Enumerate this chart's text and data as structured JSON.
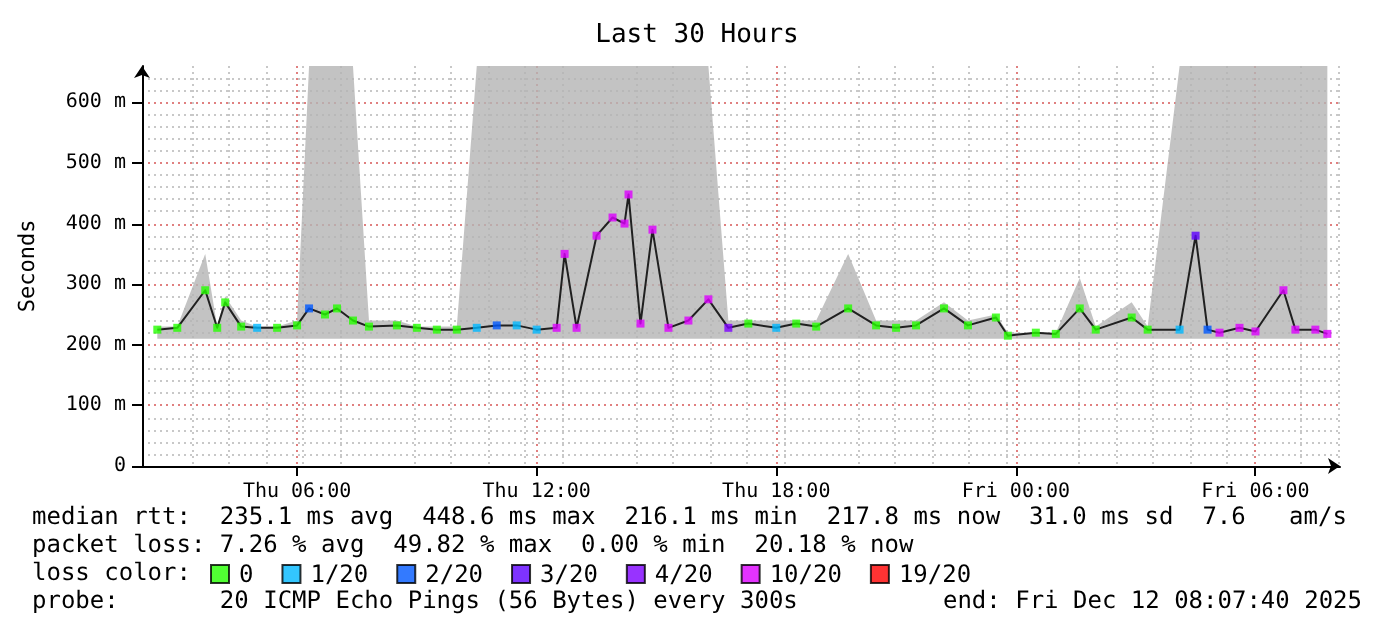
{
  "chart_data": {
    "type": "line",
    "title": "Last 30 Hours",
    "ylabel": "Seconds",
    "x": [
      "2025-12-11T02:30",
      "2025-12-11T03:00",
      "2025-12-11T03:42",
      "2025-12-11T04:00",
      "2025-12-11T04:12",
      "2025-12-11T04:36",
      "2025-12-11T05:00",
      "2025-12-11T05:30",
      "2025-12-11T06:00",
      "2025-12-11T06:18",
      "2025-12-11T06:42",
      "2025-12-11T07:00",
      "2025-12-11T07:24",
      "2025-12-11T07:48",
      "2025-12-11T08:30",
      "2025-12-11T09:00",
      "2025-12-11T09:30",
      "2025-12-11T10:00",
      "2025-12-11T10:30",
      "2025-12-11T11:00",
      "2025-12-11T11:30",
      "2025-12-11T12:00",
      "2025-12-11T12:30",
      "2025-12-11T12:42",
      "2025-12-11T13:00",
      "2025-12-11T13:30",
      "2025-12-11T13:54",
      "2025-12-11T14:12",
      "2025-12-11T14:18",
      "2025-12-11T14:36",
      "2025-12-11T14:54",
      "2025-12-11T15:18",
      "2025-12-11T15:48",
      "2025-12-11T16:18",
      "2025-12-11T16:48",
      "2025-12-11T17:18",
      "2025-12-11T18:00",
      "2025-12-11T18:30",
      "2025-12-11T19:00",
      "2025-12-11T19:48",
      "2025-12-11T20:30",
      "2025-12-11T21:00",
      "2025-12-11T21:30",
      "2025-12-11T22:12",
      "2025-12-11T22:48",
      "2025-12-11T23:30",
      "2025-12-11T23:48",
      "2025-12-12T00:30",
      "2025-12-12T01:00",
      "2025-12-12T01:36",
      "2025-12-12T02:00",
      "2025-12-12T02:54",
      "2025-12-12T03:18",
      "2025-12-12T04:06",
      "2025-12-12T04:30",
      "2025-12-12T04:48",
      "2025-12-12T05:06",
      "2025-12-12T05:36",
      "2025-12-12T06:00",
      "2025-12-12T06:42",
      "2025-12-12T07:00",
      "2025-12-12T07:30",
      "2025-12-12T07:48"
    ],
    "xlim": [
      "2025-12-11T02:07",
      "2025-12-12T08:07"
    ],
    "xticks": [
      {
        "value": "2025-12-11T06:00",
        "label": "Thu 06:00"
      },
      {
        "value": "2025-12-11T12:00",
        "label": "Thu 12:00"
      },
      {
        "value": "2025-12-11T18:00",
        "label": "Thu 18:00"
      },
      {
        "value": "2025-12-12T00:00",
        "label": "Fri 00:00"
      },
      {
        "value": "2025-12-12T06:00",
        "label": "Fri 06:00"
      }
    ],
    "ylim": [
      0,
      660
    ],
    "yticks": [
      0,
      {
        "value": 100,
        "label": "100 m"
      },
      {
        "value": 200,
        "label": "200 m"
      },
      {
        "value": 300,
        "label": "300 m"
      },
      {
        "value": 400,
        "label": "400 m"
      },
      {
        "value": 500,
        "label": "500 m"
      },
      {
        "value": 600,
        "label": "600 m"
      }
    ],
    "grid": true,
    "legend": "bottom",
    "legend_title": "loss color:",
    "marker": "square",
    "series": [
      {
        "color": "#202020",
        "marker": "none",
        "values": [
          225,
          228,
          290,
          228,
          270,
          230,
          228,
          228,
          232,
          260,
          250,
          260,
          240,
          230,
          232,
          228,
          225,
          225,
          228,
          232,
          232,
          225,
          228,
          350,
          228,
          380,
          410,
          400,
          448,
          235,
          390,
          228,
          240,
          275,
          228,
          235,
          228,
          235,
          230,
          260,
          232,
          228,
          232,
          260,
          232,
          245,
          215,
          220,
          218,
          260,
          225,
          245,
          225,
          225,
          380,
          225,
          220,
          228,
          222,
          290,
          225,
          225,
          218
        ],
        "lower": [
          210,
          210,
          210,
          210,
          210,
          210,
          210,
          210,
          210,
          210,
          210,
          210,
          210,
          210,
          210,
          210,
          210,
          210,
          210,
          210,
          210,
          210,
          210,
          210,
          210,
          210,
          210,
          210,
          210,
          210,
          210,
          210,
          210,
          210,
          210,
          210,
          210,
          210,
          210,
          210,
          210,
          210,
          210,
          210,
          210,
          210,
          210,
          210,
          210,
          210,
          210,
          210,
          210,
          210,
          210,
          210,
          210,
          210,
          210,
          210,
          210,
          210,
          210
        ],
        "upper": [
          230,
          230,
          350,
          230,
          280,
          240,
          230,
          230,
          240,
          660,
          660,
          660,
          660,
          240,
          240,
          230,
          230,
          230,
          660,
          660,
          660,
          660,
          660,
          660,
          660,
          660,
          660,
          660,
          660,
          660,
          660,
          660,
          660,
          660,
          240,
          240,
          240,
          240,
          240,
          350,
          240,
          240,
          240,
          270,
          240,
          250,
          220,
          220,
          220,
          310,
          230,
          270,
          230,
          660,
          660,
          660,
          660,
          660,
          660,
          660,
          660,
          660,
          660
        ]
      },
      {
        "type": "scatter",
        "name": "0",
        "color": "#26ff00",
        "values": [
          225,
          228,
          290,
          228,
          270,
          230,
          null,
          228,
          232,
          null,
          250,
          260,
          240,
          230,
          232,
          228,
          225,
          225,
          null,
          null,
          null,
          null,
          null,
          null,
          null,
          null,
          null,
          null,
          null,
          null,
          null,
          null,
          null,
          null,
          null,
          235,
          null,
          235,
          230,
          260,
          232,
          228,
          232,
          260,
          232,
          245,
          215,
          220,
          218,
          260,
          225,
          245,
          225,
          null,
          null,
          null,
          null,
          null,
          null,
          null,
          null,
          null,
          null
        ]
      },
      {
        "type": "scatter",
        "name": "1/20",
        "color": "#00b8ff",
        "values": [
          null,
          null,
          null,
          null,
          null,
          null,
          228,
          null,
          null,
          null,
          null,
          null,
          null,
          null,
          null,
          null,
          null,
          null,
          228,
          null,
          232,
          225,
          null,
          null,
          null,
          null,
          null,
          null,
          null,
          null,
          null,
          null,
          null,
          null,
          null,
          null,
          228,
          null,
          null,
          null,
          null,
          null,
          null,
          null,
          null,
          null,
          null,
          null,
          null,
          null,
          null,
          null,
          null,
          225,
          null,
          null,
          null,
          null,
          null,
          null,
          null,
          null,
          null
        ]
      },
      {
        "type": "scatter",
        "name": "2/20",
        "color": "#0059ff",
        "values": [
          null,
          null,
          null,
          null,
          null,
          null,
          null,
          null,
          null,
          260,
          null,
          null,
          null,
          null,
          null,
          null,
          null,
          null,
          null,
          232,
          null,
          null,
          null,
          null,
          null,
          null,
          null,
          null,
          null,
          null,
          null,
          null,
          null,
          null,
          null,
          null,
          null,
          null,
          null,
          null,
          null,
          null,
          null,
          null,
          null,
          null,
          null,
          null,
          null,
          null,
          null,
          null,
          null,
          null,
          null,
          225,
          null,
          null,
          null,
          null,
          null,
          null,
          null
        ]
      },
      {
        "type": "scatter",
        "name": "3/20",
        "color": "#5e00ff",
        "values": [
          null,
          null,
          null,
          null,
          null,
          null,
          null,
          null,
          null,
          null,
          null,
          null,
          null,
          null,
          null,
          null,
          null,
          null,
          null,
          null,
          null,
          null,
          null,
          null,
          null,
          null,
          null,
          null,
          null,
          null,
          null,
          null,
          null,
          null,
          null,
          null,
          null,
          null,
          null,
          null,
          null,
          null,
          null,
          null,
          null,
          null,
          null,
          null,
          null,
          null,
          null,
          null,
          null,
          null,
          380,
          null,
          null,
          null,
          null,
          null,
          null,
          null,
          null
        ]
      },
      {
        "type": "scatter",
        "name": "4/20",
        "color": "#7e00ff",
        "values": [
          null,
          null,
          null,
          null,
          null,
          null,
          null,
          null,
          null,
          null,
          null,
          null,
          null,
          null,
          null,
          null,
          null,
          null,
          null,
          null,
          null,
          null,
          null,
          null,
          null,
          null,
          null,
          null,
          null,
          null,
          null,
          null,
          null,
          null,
          228,
          null,
          null,
          null,
          null,
          null,
          null,
          null,
          null,
          null,
          null,
          null,
          null,
          null,
          null,
          null,
          null,
          null,
          null,
          null,
          null,
          null,
          null,
          null,
          null,
          null,
          null,
          null,
          null
        ]
      },
      {
        "type": "scatter",
        "name": "10/20",
        "color": "#dd00ff",
        "values": [
          null,
          null,
          null,
          null,
          null,
          null,
          null,
          null,
          null,
          null,
          null,
          null,
          null,
          null,
          null,
          null,
          null,
          null,
          null,
          null,
          null,
          null,
          228,
          350,
          228,
          380,
          410,
          400,
          448,
          235,
          390,
          228,
          240,
          275,
          null,
          null,
          null,
          null,
          null,
          null,
          null,
          null,
          null,
          null,
          null,
          null,
          null,
          null,
          null,
          null,
          null,
          null,
          null,
          null,
          null,
          null,
          220,
          228,
          222,
          290,
          225,
          225,
          218
        ]
      },
      {
        "type": "scatter",
        "name": "19/20",
        "color": "#ff0000",
        "values": [
          null,
          null,
          null,
          null,
          null,
          null,
          null,
          null,
          null,
          null,
          null,
          null,
          null,
          null,
          null,
          null,
          null,
          null,
          null,
          null,
          null,
          null,
          null,
          null,
          null,
          null,
          null,
          null,
          null,
          null,
          null,
          null,
          null,
          null,
          null,
          null,
          null,
          null,
          null,
          null,
          null,
          null,
          null,
          null,
          null,
          null,
          null,
          null,
          null,
          null,
          null,
          null,
          null,
          null,
          null,
          null,
          null,
          null,
          null,
          null,
          null,
          null,
          null
        ]
      }
    ],
    "annotations": [
      "median rtt:  235.1 ms avg  448.6 ms max  216.1 ms min  217.8 ms now  31.0 ms sd  7.6   am/s",
      "packet loss: 7.26 % avg  49.82 % max  0.00 % min  20.18 % now",
      "probe:       20 ICMP Echo Pings (56 Bytes) every 300s",
      "end: Fri Dec 12 08:07:40 2025"
    ]
  }
}
